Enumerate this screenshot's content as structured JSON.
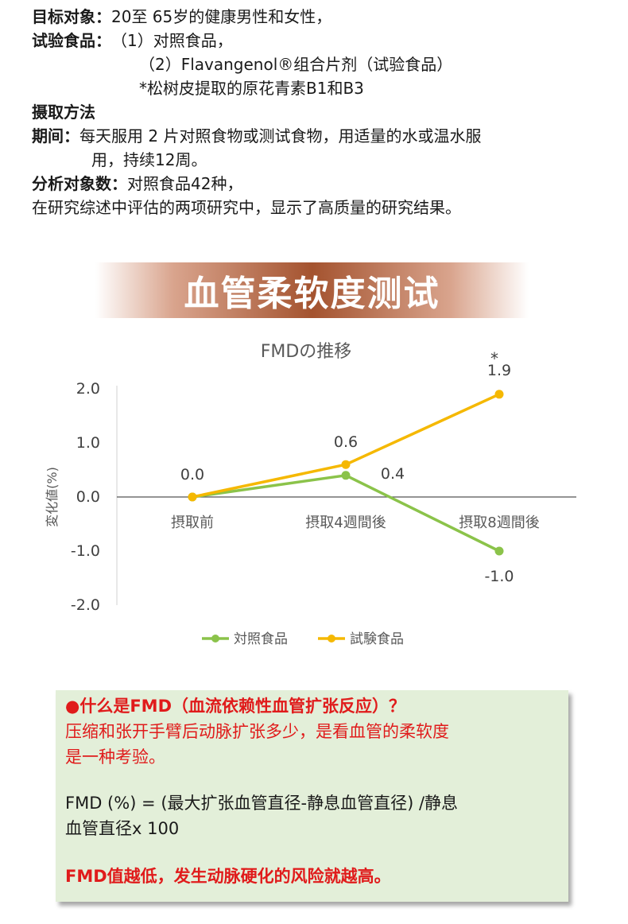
{
  "info": {
    "subject_label": "目标对象：",
    "subject_value": "20至 65岁的健康男性和女性，",
    "food_label": "试验食品：",
    "food_lines": [
      "（1）对照食品，",
      "（2）Flavangenol®组合片剂（试验食品）",
      "*松树皮提取的原花青素B1和B3"
    ],
    "method_label": "摄取方法",
    "period_label": "期间：",
    "period_lines": [
      "每天服用 2 片对照食物或测试食物，用适量的水或温水服",
      "用，持续12周。"
    ],
    "count_label": "分析对象数：",
    "count_value": "对照食品42种，",
    "summary": "在研究综述中评估的两项研究中，显示了高质量的研究结果。"
  },
  "banner_title": "血管柔软度测试",
  "chart_data": {
    "type": "line",
    "title": "FMDの推移",
    "ylabel": "変化値(%)",
    "xlabel": "",
    "categories": [
      "摂取前",
      "摂取4週間後",
      "摂取8週間後"
    ],
    "ylim": [
      -2.0,
      2.0
    ],
    "yticks": [
      "2.0",
      "1.0",
      "0.0",
      "-1.0",
      "-2.0"
    ],
    "series": [
      {
        "name": "対照食品",
        "values": [
          0.0,
          0.4,
          -1.0
        ],
        "color": "#8bc34a",
        "labels": [
          "",
          "0.4",
          "-1.0"
        ]
      },
      {
        "name": "試験食品",
        "values": [
          0.0,
          0.6,
          1.9
        ],
        "color": "#f5b800",
        "labels": [
          "0.0",
          "0.6",
          "1.9"
        ]
      }
    ],
    "significance_mark": "*",
    "legend": "bottom"
  },
  "note": {
    "heading": "●什么是FMD（血流依赖性血管扩张反应）？",
    "desc_lines": [
      "压缩和张开手臂后动脉扩张多少，是看血管的柔软度",
      "是一种考验。"
    ],
    "formula_lines": [
      "FMD (%) = (最大扩张血管直径-静息血管直径) /静息",
      "血管直径x 100"
    ],
    "conclusion": "FMD值越低，发生动脉硬化的风险就越高。"
  }
}
